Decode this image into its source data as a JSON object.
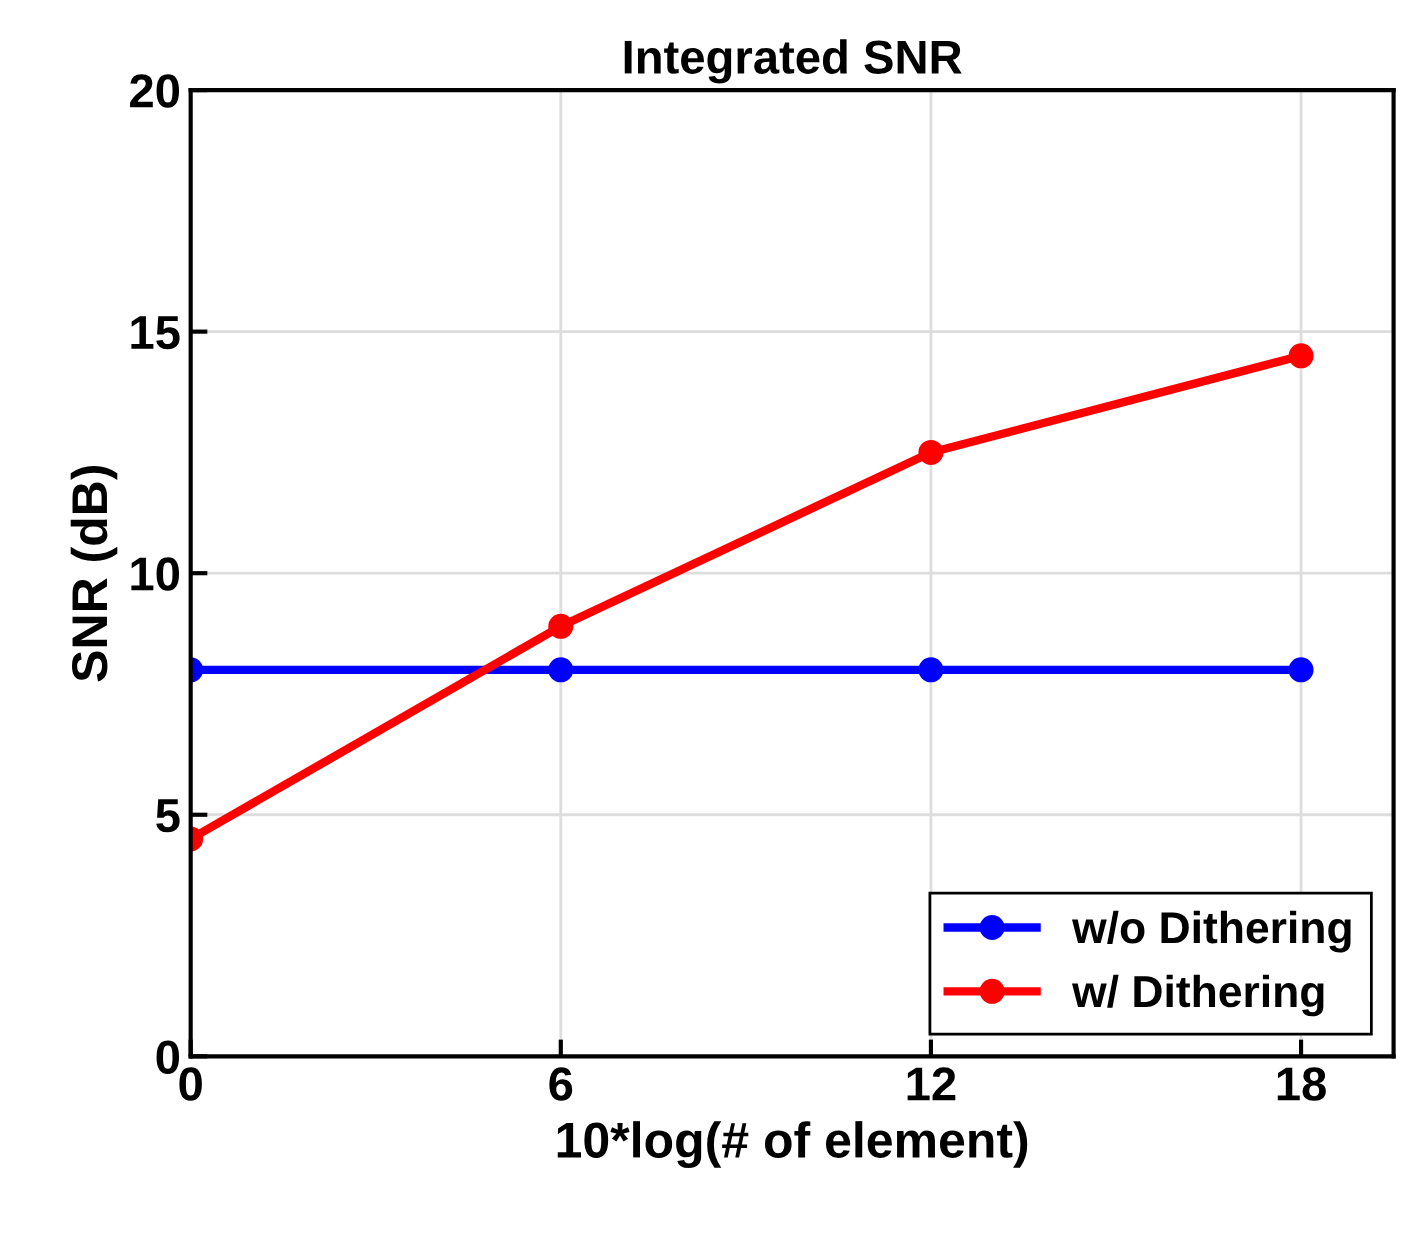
{
  "chart_data": {
    "type": "line",
    "title": "Integrated SNR",
    "xlabel": "10*log(# of element)",
    "ylabel": "SNR (dB)",
    "x": [
      0,
      6,
      12,
      18
    ],
    "series": [
      {
        "name": "w/o Dithering",
        "color": "#0000ff",
        "values": [
          8,
          8,
          8,
          8
        ]
      },
      {
        "name": "w/ Dithering",
        "color": "#ff0000",
        "values": [
          4.5,
          8.9,
          12.5,
          14.5
        ]
      }
    ],
    "xlim": [
      0,
      19.5
    ],
    "xticks": [
      0,
      6,
      12,
      18
    ],
    "ylim": [
      0,
      20
    ],
    "yticks": [
      0,
      5,
      10,
      15,
      20
    ],
    "grid": true,
    "legend": "lower right",
    "marker": "circle",
    "line_style": "solid"
  }
}
